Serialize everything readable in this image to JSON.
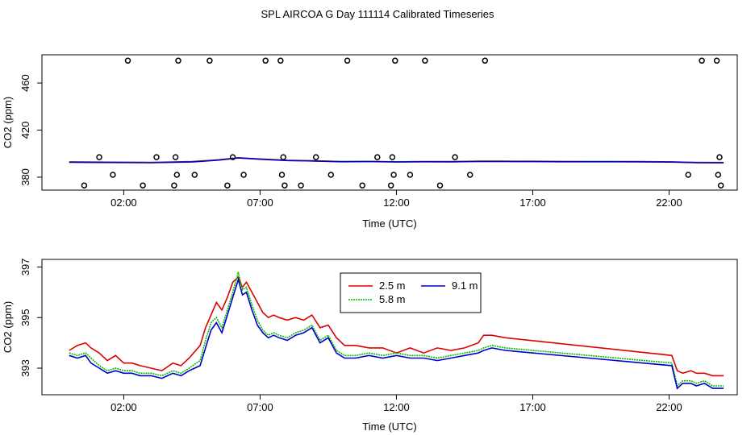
{
  "title": "SPL AIRCOA G  Day 111114  Calibrated Timeseries",
  "colors": {
    "s25": "#dd0000",
    "s58": "#00bb00",
    "s91": "#0000cc",
    "axis": "#000000"
  },
  "chart_data": [
    {
      "type": "scatter",
      "xlabel": "Time (UTC)",
      "ylabel": "CO2 (ppm)",
      "xlim": [
        -1.0,
        24.5
      ],
      "ylim": [
        369,
        484
      ],
      "xticks": [
        2,
        7,
        12,
        17,
        22
      ],
      "xtick_labels": [
        "02:00",
        "07:00",
        "12:00",
        "17:00",
        "22:00"
      ],
      "yticks": [
        380,
        420,
        460
      ],
      "ytick_labels": [
        "380",
        "420",
        "460"
      ],
      "points": [
        [
          0.55,
          373
        ],
        [
          1.1,
          397
        ],
        [
          1.6,
          382
        ],
        [
          2.15,
          479
        ],
        [
          2.7,
          373
        ],
        [
          3.2,
          397
        ],
        [
          3.85,
          373
        ],
        [
          3.9,
          397
        ],
        [
          3.95,
          382
        ],
        [
          4.0,
          479
        ],
        [
          4.6,
          382
        ],
        [
          5.15,
          479
        ],
        [
          5.8,
          373
        ],
        [
          6.4,
          382
        ],
        [
          6.0,
          397
        ],
        [
          7.2,
          479
        ],
        [
          7.75,
          479
        ],
        [
          7.8,
          382
        ],
        [
          7.85,
          397
        ],
        [
          7.9,
          373
        ],
        [
          8.5,
          373
        ],
        [
          9.05,
          397
        ],
        [
          9.6,
          382
        ],
        [
          10.2,
          479
        ],
        [
          10.75,
          373
        ],
        [
          11.3,
          397
        ],
        [
          11.8,
          373
        ],
        [
          11.85,
          397
        ],
        [
          11.9,
          382
        ],
        [
          11.95,
          479
        ],
        [
          12.5,
          382
        ],
        [
          13.05,
          479
        ],
        [
          13.6,
          373
        ],
        [
          14.15,
          397
        ],
        [
          14.7,
          382
        ],
        [
          15.25,
          479
        ],
        [
          22.7,
          382
        ],
        [
          23.2,
          479
        ],
        [
          23.75,
          479
        ],
        [
          23.8,
          382
        ],
        [
          23.85,
          397
        ],
        [
          23.9,
          373
        ]
      ],
      "series": [
        {
          "name": "2.5 m",
          "x": [
            0.0,
            3.0,
            4.5,
            5.5,
            6.2,
            7.0,
            8.0,
            9.0,
            10.0,
            11.0,
            12.0,
            13.0,
            14.0,
            15.0,
            16.0,
            17.0,
            18.0,
            19.0,
            20.0,
            21.0,
            22.1,
            23.0,
            24.0
          ],
          "values": [
            393,
            392.6,
            393.2,
            394.8,
            396.5,
            395.5,
            394.4,
            393.9,
            393.3,
            393.4,
            393.1,
            393.3,
            393.2,
            393.6,
            393.6,
            393.5,
            393.4,
            393.3,
            393.3,
            393.2,
            393.0,
            392.6,
            392.5
          ]
        },
        {
          "name": "5.8 m",
          "x": [
            0.0,
            3.0,
            4.5,
            5.5,
            6.2,
            7.0,
            8.0,
            9.0,
            10.0,
            11.0,
            12.0,
            13.0,
            14.0,
            15.0,
            16.0,
            17.0,
            18.0,
            19.0,
            20.0,
            21.0,
            22.1,
            23.0,
            24.0
          ],
          "values": [
            392.8,
            392.4,
            393.0,
            394.6,
            396.4,
            395.3,
            394.2,
            393.8,
            393.2,
            393.3,
            393.0,
            393.2,
            393.1,
            393.4,
            393.4,
            393.3,
            393.2,
            393.2,
            393.2,
            393.1,
            392.9,
            392.4,
            392.3
          ]
        },
        {
          "name": "9.1 m",
          "x": [
            0.0,
            3.0,
            4.5,
            5.5,
            6.2,
            7.0,
            8.0,
            9.0,
            10.0,
            11.0,
            12.0,
            13.0,
            14.0,
            15.0,
            16.0,
            17.0,
            18.0,
            19.0,
            20.0,
            21.0,
            22.1,
            23.0,
            24.0
          ],
          "values": [
            392.7,
            392.3,
            392.9,
            394.5,
            396.3,
            395.2,
            394.1,
            393.7,
            393.1,
            393.2,
            392.9,
            393.1,
            393.0,
            393.3,
            393.3,
            393.2,
            393.1,
            393.1,
            393.1,
            393.0,
            392.8,
            392.3,
            392.2
          ]
        }
      ]
    },
    {
      "type": "line",
      "xlabel": "Time (UTC)",
      "ylabel": "CO2 (ppm)",
      "xlim": [
        -1.0,
        24.5
      ],
      "ylim": [
        391.95,
        397.3
      ],
      "xticks": [
        2,
        7,
        12,
        17,
        22
      ],
      "xtick_labels": [
        "02:00",
        "07:00",
        "12:00",
        "17:00",
        "22:00"
      ],
      "yticks": [
        393,
        395,
        397
      ],
      "ytick_labels": [
        "393",
        "395",
        "397"
      ],
      "legend": "top-center",
      "series": [
        {
          "name": "2.5 m",
          "x": [
            0.0,
            0.3,
            0.6,
            0.8,
            1.1,
            1.4,
            1.7,
            2.0,
            2.3,
            2.6,
            3.0,
            3.4,
            3.8,
            4.1,
            4.4,
            4.8,
            5.0,
            5.2,
            5.4,
            5.6,
            5.8,
            6.0,
            6.2,
            6.35,
            6.5,
            6.7,
            6.9,
            7.1,
            7.3,
            7.5,
            7.7,
            8.0,
            8.3,
            8.6,
            8.9,
            9.2,
            9.5,
            9.8,
            10.1,
            10.5,
            11.0,
            11.5,
            12.0,
            12.5,
            13.0,
            13.5,
            14.0,
            14.5,
            15.0,
            15.2,
            15.5,
            16.0,
            22.1,
            22.3,
            22.5,
            22.8,
            23.0,
            23.3,
            23.6,
            24.0
          ],
          "values": [
            393.7,
            393.9,
            394.0,
            393.8,
            393.6,
            393.3,
            393.5,
            393.2,
            393.2,
            393.1,
            393.0,
            392.9,
            393.2,
            393.1,
            393.4,
            393.9,
            394.6,
            395.1,
            395.6,
            395.3,
            395.8,
            396.4,
            396.6,
            396.2,
            396.4,
            396.0,
            395.6,
            395.2,
            395.0,
            395.1,
            395.0,
            394.9,
            395.0,
            394.9,
            395.1,
            394.6,
            394.7,
            394.2,
            393.9,
            393.9,
            393.8,
            393.8,
            393.6,
            393.8,
            393.6,
            393.8,
            393.7,
            393.8,
            394.0,
            394.3,
            394.3,
            394.2,
            393.5,
            392.9,
            392.8,
            392.9,
            392.8,
            392.8,
            392.7,
            392.7
          ]
        },
        {
          "name": "5.8 m",
          "x": [
            0.0,
            0.3,
            0.6,
            0.8,
            1.1,
            1.4,
            1.7,
            2.0,
            2.3,
            2.6,
            3.0,
            3.4,
            3.8,
            4.1,
            4.4,
            4.8,
            5.0,
            5.2,
            5.4,
            5.6,
            5.8,
            6.0,
            6.2,
            6.35,
            6.5,
            6.7,
            6.9,
            7.1,
            7.3,
            7.5,
            7.7,
            8.0,
            8.3,
            8.6,
            8.9,
            9.2,
            9.5,
            9.8,
            10.1,
            10.5,
            11.0,
            11.5,
            12.0,
            12.5,
            13.0,
            13.5,
            14.0,
            14.5,
            15.0,
            15.2,
            15.5,
            16.0,
            22.1,
            22.3,
            22.5,
            22.8,
            23.0,
            23.3,
            23.6,
            24.0
          ],
          "values": [
            393.6,
            393.5,
            393.6,
            393.4,
            393.1,
            392.9,
            393.0,
            392.9,
            392.9,
            392.8,
            392.8,
            392.7,
            392.9,
            392.8,
            393.0,
            393.3,
            394.1,
            394.8,
            395.0,
            394.6,
            395.3,
            396.0,
            396.8,
            396.1,
            396.2,
            395.5,
            394.9,
            394.5,
            394.3,
            394.4,
            394.3,
            394.2,
            394.4,
            394.5,
            394.7,
            394.1,
            394.3,
            393.7,
            393.5,
            393.5,
            393.6,
            393.5,
            393.6,
            393.5,
            393.5,
            393.4,
            393.5,
            393.6,
            393.7,
            393.8,
            393.9,
            393.8,
            393.2,
            392.3,
            392.5,
            392.5,
            392.4,
            392.5,
            392.3,
            392.3
          ]
        },
        {
          "name": "9.1 m",
          "x": [
            0.0,
            0.3,
            0.6,
            0.8,
            1.1,
            1.4,
            1.7,
            2.0,
            2.3,
            2.6,
            3.0,
            3.4,
            3.8,
            4.1,
            4.4,
            4.8,
            5.0,
            5.2,
            5.4,
            5.6,
            5.8,
            6.0,
            6.2,
            6.35,
            6.5,
            6.7,
            6.9,
            7.1,
            7.3,
            7.5,
            7.7,
            8.0,
            8.3,
            8.6,
            8.9,
            9.2,
            9.5,
            9.8,
            10.1,
            10.5,
            11.0,
            11.5,
            12.0,
            12.5,
            13.0,
            13.5,
            14.0,
            14.5,
            15.0,
            15.2,
            15.5,
            16.0,
            22.1,
            22.3,
            22.5,
            22.8,
            23.0,
            23.3,
            23.6,
            24.0
          ],
          "values": [
            393.5,
            393.4,
            393.5,
            393.2,
            393.0,
            392.8,
            392.9,
            392.8,
            392.8,
            392.7,
            392.7,
            392.6,
            392.8,
            392.7,
            392.9,
            393.1,
            393.8,
            394.5,
            394.8,
            394.4,
            395.1,
            395.8,
            396.5,
            395.9,
            396.0,
            395.3,
            394.7,
            394.4,
            394.2,
            394.3,
            394.2,
            394.1,
            394.3,
            394.4,
            394.6,
            394.0,
            394.2,
            393.6,
            393.4,
            393.4,
            393.5,
            393.4,
            393.5,
            393.4,
            393.4,
            393.3,
            393.4,
            393.5,
            393.6,
            393.7,
            393.8,
            393.7,
            393.1,
            392.2,
            392.4,
            392.4,
            392.3,
            392.4,
            392.2,
            392.2
          ]
        }
      ]
    }
  ]
}
